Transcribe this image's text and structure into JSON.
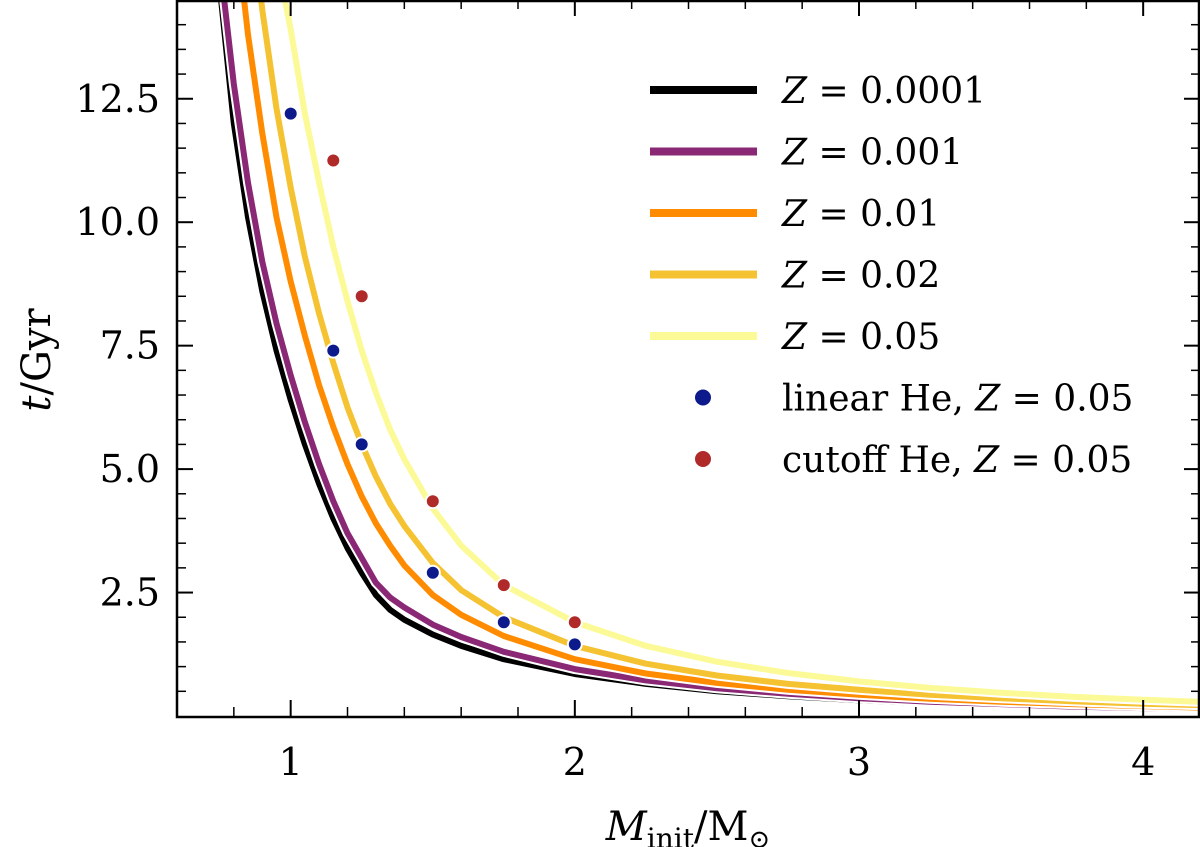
{
  "chart_data": {
    "type": "line",
    "xlabel": {
      "main": "M",
      "sub": "init",
      "rest": "/M",
      "sun": "⊙"
    },
    "ylabel": {
      "main": "t",
      "rest": "/Gyr"
    },
    "xlim": [
      0.6,
      4.2
    ],
    "ylim": [
      0,
      14.5
    ],
    "xticks": [
      1,
      2,
      3,
      4
    ],
    "xticks_labels": [
      "1",
      "2",
      "3",
      "4"
    ],
    "xminor": [
      0.8,
      1.2,
      1.4,
      1.6,
      1.8,
      2.2,
      2.4,
      2.6,
      2.8,
      3.2,
      3.4,
      3.6,
      3.8,
      4.2
    ],
    "yticks": [
      2.5,
      5.0,
      7.5,
      10.0,
      12.5
    ],
    "yticks_labels": [
      "2.5",
      "5.0",
      "7.5",
      "10.0",
      "12.5"
    ],
    "yminor": [
      0.5,
      1.0,
      1.5,
      2.0,
      3.0,
      3.5,
      4.0,
      4.5,
      5.5,
      6.0,
      6.5,
      7.0,
      8.0,
      8.5,
      9.0,
      9.5,
      10.5,
      11.0,
      11.5,
      12.0,
      13.0,
      13.5,
      14.0
    ],
    "legend_position": "top-right",
    "series": [
      {
        "name": "Z = 0.0001",
        "z_prefix": "Z",
        "z_value": "= 0.0001",
        "color": "#000000",
        "x": [
          0.75,
          0.8,
          0.85,
          0.9,
          0.95,
          1.0,
          1.05,
          1.1,
          1.15,
          1.2,
          1.25,
          1.3,
          1.35,
          1.4,
          1.5,
          1.6,
          1.75,
          2.0,
          2.25,
          2.5,
          2.75,
          3.0,
          3.25,
          3.5,
          3.75,
          4.0,
          4.2
        ],
        "y": [
          14.8,
          12.0,
          10.1,
          8.6,
          7.4,
          6.4,
          5.5,
          4.7,
          4.0,
          3.4,
          2.9,
          2.45,
          2.15,
          1.95,
          1.65,
          1.42,
          1.15,
          0.85,
          0.65,
          0.5,
          0.4,
          0.32,
          0.26,
          0.21,
          0.17,
          0.14,
          0.12
        ]
      },
      {
        "name": "Z = 0.001",
        "z_prefix": "Z",
        "z_value": "= 0.001",
        "color": "#8a2876",
        "x": [
          0.76,
          0.8,
          0.85,
          0.9,
          0.95,
          1.0,
          1.05,
          1.1,
          1.15,
          1.2,
          1.25,
          1.3,
          1.35,
          1.4,
          1.5,
          1.6,
          1.75,
          2.0,
          2.25,
          2.5,
          2.75,
          3.0,
          3.25,
          3.5,
          3.75,
          4.0,
          4.2
        ],
        "y": [
          14.8,
          12.8,
          10.8,
          9.2,
          7.95,
          6.9,
          5.95,
          5.1,
          4.35,
          3.7,
          3.2,
          2.7,
          2.4,
          2.2,
          1.85,
          1.6,
          1.3,
          0.95,
          0.72,
          0.56,
          0.45,
          0.36,
          0.29,
          0.24,
          0.19,
          0.16,
          0.14
        ]
      },
      {
        "name": "Z = 0.01",
        "z_prefix": "Z",
        "z_value": "= 0.01",
        "color": "#ff8c00",
        "x": [
          0.83,
          0.85,
          0.9,
          0.95,
          1.0,
          1.05,
          1.1,
          1.15,
          1.2,
          1.25,
          1.3,
          1.35,
          1.4,
          1.5,
          1.6,
          1.75,
          2.0,
          2.25,
          2.5,
          2.75,
          3.0,
          3.25,
          3.5,
          3.75,
          4.0,
          4.2
        ],
        "y": [
          14.8,
          13.8,
          11.8,
          10.1,
          8.8,
          7.7,
          6.7,
          5.85,
          5.1,
          4.45,
          3.9,
          3.45,
          3.05,
          2.45,
          2.05,
          1.62,
          1.15,
          0.86,
          0.67,
          0.53,
          0.43,
          0.35,
          0.29,
          0.24,
          0.2,
          0.17
        ]
      },
      {
        "name": "Z = 0.02",
        "z_prefix": "Z",
        "z_value": "= 0.02",
        "color": "#f5c232",
        "x": [
          0.89,
          0.9,
          0.95,
          1.0,
          1.05,
          1.1,
          1.15,
          1.2,
          1.25,
          1.3,
          1.35,
          1.4,
          1.5,
          1.6,
          1.75,
          2.0,
          2.25,
          2.5,
          2.75,
          3.0,
          3.25,
          3.5,
          3.75,
          4.0,
          4.2
        ],
        "y": [
          14.8,
          14.3,
          12.3,
          10.7,
          9.3,
          8.15,
          7.15,
          6.25,
          5.5,
          4.85,
          4.3,
          3.85,
          3.1,
          2.55,
          2.0,
          1.42,
          1.06,
          0.82,
          0.65,
          0.53,
          0.43,
          0.36,
          0.3,
          0.25,
          0.22
        ]
      },
      {
        "name": "Z = 0.05",
        "z_prefix": "Z",
        "z_value": "= 0.05",
        "color": "#fbfa97",
        "x": [
          0.97,
          1.0,
          1.05,
          1.1,
          1.15,
          1.2,
          1.25,
          1.3,
          1.35,
          1.4,
          1.5,
          1.6,
          1.75,
          2.0,
          2.25,
          2.5,
          2.75,
          3.0,
          3.25,
          3.5,
          3.75,
          4.0,
          4.2
        ],
        "y": [
          14.8,
          13.9,
          12.2,
          10.8,
          9.5,
          8.4,
          7.4,
          6.55,
          5.8,
          5.2,
          4.2,
          3.45,
          2.65,
          1.9,
          1.42,
          1.1,
          0.87,
          0.7,
          0.57,
          0.47,
          0.39,
          0.33,
          0.29
        ]
      }
    ],
    "points": [
      {
        "name": "linear He, Z = 0.05",
        "label_prefix": "linear He,",
        "z_prefix": "Z",
        "z_value": "= 0.05",
        "color": "#0c1a8c",
        "x": [
          1.0,
          1.15,
          1.25,
          1.5,
          1.75,
          2.0
        ],
        "y": [
          12.2,
          7.4,
          5.5,
          2.9,
          1.9,
          1.45
        ]
      },
      {
        "name": "cutoff He, Z = 0.05",
        "label_prefix": "cutoff He,",
        "z_prefix": "Z",
        "z_value": "= 0.05",
        "color": "#b02a2a",
        "x": [
          1.15,
          1.25,
          1.5,
          1.75,
          2.0
        ],
        "y": [
          11.25,
          8.5,
          4.35,
          2.65,
          1.9
        ]
      }
    ]
  }
}
